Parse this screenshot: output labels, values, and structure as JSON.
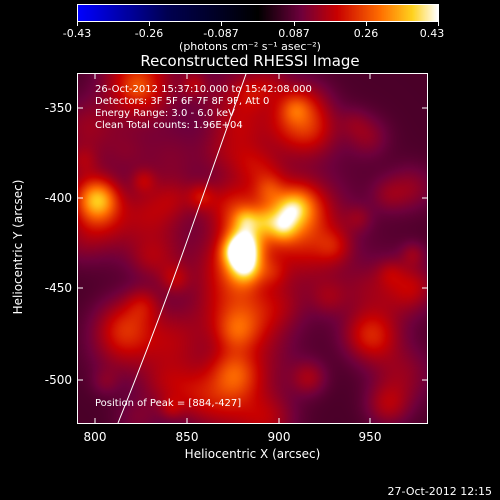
{
  "colorbar": {
    "ticks": [
      "-0.43",
      "-0.26",
      "-0.087",
      "0.087",
      "0.26",
      "0.43"
    ],
    "units": "(photons cm⁻² s⁻¹ asec⁻²)"
  },
  "title": "Reconstructed RHESSI Image",
  "info": {
    "line1": "26-Oct-2012 15:37:10.000 to 15:42:08.000",
    "line2": "Detectors: 3F 5F 6F 7F 8F 9F, Att 0",
    "line3": "Energy Range: 3.0 - 6.0 keV",
    "line4": "Clean    Total counts: 1.96E+04"
  },
  "peak_text": "Position of Peak = [884,-427]",
  "axes": {
    "xlabel": "Heliocentric X (arcsec)",
    "ylabel": "Heliocentric Y (arcsec)",
    "xticks": [
      "800",
      "850",
      "900",
      "950"
    ],
    "yticks": [
      "-350",
      "-400",
      "-450",
      "-500"
    ]
  },
  "timestamp": "27-Oct-2012 12:15"
}
